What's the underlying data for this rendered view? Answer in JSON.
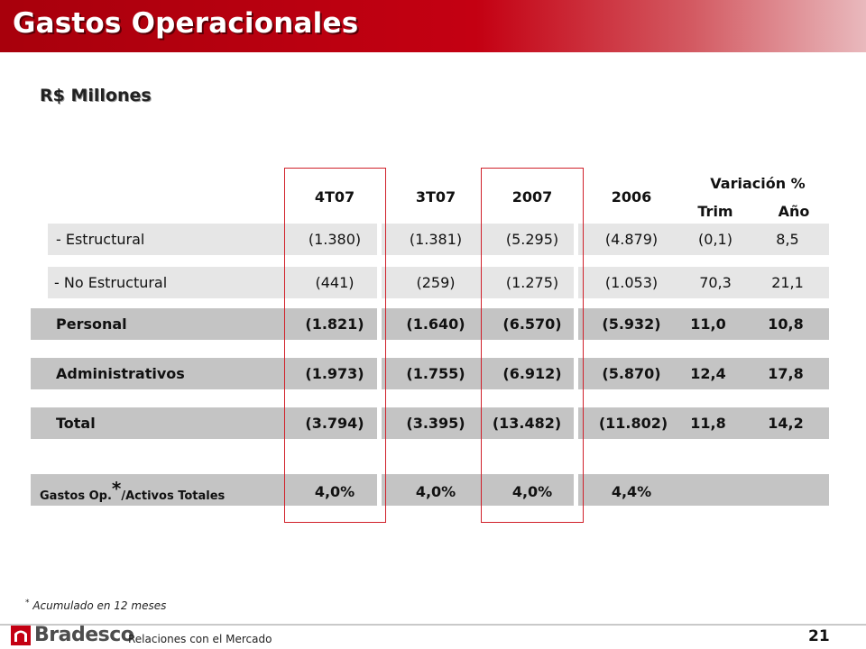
{
  "header": {
    "title": "Gastos Operacionales"
  },
  "subtitle": "R$ Millones",
  "table": {
    "columns": [
      "4T07",
      "3T07",
      "2007",
      "2006"
    ],
    "variation_header": "Variación %",
    "variation_columns": [
      "Trim",
      "Año"
    ],
    "rows": [
      {
        "label": "- Estructural",
        "values": [
          "(1.380)",
          "(1.381)",
          "(5.295)",
          "(4.879)",
          "(0,1)",
          "8,5"
        ]
      },
      {
        "label": "- No Estructural",
        "values": [
          "(441)",
          "(259)",
          "(1.275)",
          "(1.053)",
          "70,3",
          "21,1"
        ]
      },
      {
        "label": "Personal",
        "values": [
          "(1.821)",
          "(1.640)",
          "(6.570)",
          "(5.932)",
          "11,0",
          "10,8"
        ]
      },
      {
        "label": "Administrativos",
        "values": [
          "(1.973)",
          "(1.755)",
          "(6.912)",
          "(5.870)",
          "12,4",
          "17,8"
        ]
      },
      {
        "label": "Total",
        "values": [
          "(3.794)",
          "(3.395)",
          "(13.482)",
          "(11.802)",
          "11,8",
          "14,2"
        ]
      },
      {
        "label_prefix": "Gastos Op.",
        "label_mark": "*",
        "label_suffix": "/Activos Totales",
        "values": [
          "4,0%",
          "4,0%",
          "4,0%",
          "4,4%"
        ]
      }
    ]
  },
  "footnote": {
    "mark": "*",
    "text": "Acumulado en 12 meses"
  },
  "footer": {
    "brand": "Bradesco",
    "section": "Relaciones con el Mercado",
    "page": "21"
  },
  "colors": {
    "header_red": "#c40012",
    "highlight_outline": "#d0202a",
    "bar_light": "#e6e6e6",
    "bar_dark": "#c4c4c4"
  }
}
